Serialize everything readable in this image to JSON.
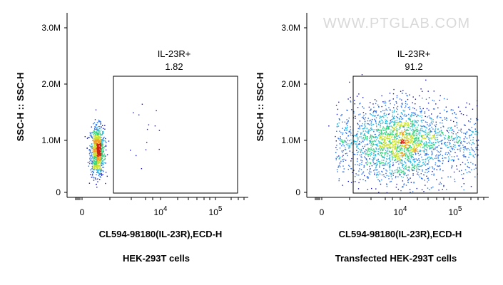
{
  "watermark": "WWW.PTGLAB.COM",
  "colors": {
    "density_scale": [
      "#1a1aa6",
      "#2b6ee6",
      "#27b8e0",
      "#30d07a",
      "#c8e030",
      "#f4a020",
      "#d02010"
    ],
    "gate_line": "#000000",
    "axis_line": "#000000"
  },
  "chart_data": [
    {
      "type": "scatter",
      "subtype": "flow-cytometry-density-dot-plot",
      "title": "",
      "caption": "HEK-293T cells",
      "xlabel": "CL594-98180(IL-23R),ECD-H",
      "ylabel": "SSC-H :: SSC-H",
      "x_scale": "biexponential",
      "x_ticks": [
        {
          "value": 0,
          "label": "0"
        },
        {
          "value": 10000,
          "label": "10",
          "exp": "4"
        },
        {
          "value": 100000,
          "label": "10",
          "exp": "5"
        }
      ],
      "y_ticks": [
        {
          "value": 0,
          "label": "0"
        },
        {
          "value": 1000000,
          "label": "1.0M"
        },
        {
          "value": 2000000,
          "label": "2.0M"
        },
        {
          "value": 3000000,
          "label": "3.0M"
        }
      ],
      "ylim": [
        0,
        3200000
      ],
      "gate": {
        "name": "IL-23R+",
        "value": "1.82",
        "x_range": [
          1100,
          290000
        ],
        "y_range": [
          0,
          2120000
        ]
      },
      "population": {
        "x_center": 400,
        "y_center": 760000,
        "spread": "narrow",
        "events_in_gate_percent": 1.82
      },
      "grid": false,
      "legend": "none"
    },
    {
      "type": "scatter",
      "subtype": "flow-cytometry-density-dot-plot",
      "title": "",
      "caption": "Transfected HEK-293T cells",
      "xlabel": "CL594-98180(IL-23R),ECD-H",
      "ylabel": "SSC-H :: SSC-H",
      "x_scale": "biexponential",
      "x_ticks": [
        {
          "value": 0,
          "label": "0"
        },
        {
          "value": 10000,
          "label": "10",
          "exp": "4"
        },
        {
          "value": 100000,
          "label": "10",
          "exp": "5"
        }
      ],
      "y_ticks": [
        {
          "value": 0,
          "label": "0"
        },
        {
          "value": 1000000,
          "label": "1.0M"
        },
        {
          "value": 2000000,
          "label": "2.0M"
        },
        {
          "value": 3000000,
          "label": "3.0M"
        }
      ],
      "ylim": [
        0,
        3200000
      ],
      "gate": {
        "name": "IL-23R+",
        "value": "91.2",
        "x_range": [
          1100,
          290000
        ],
        "y_range": [
          0,
          2120000
        ]
      },
      "population": {
        "x_center": 25000,
        "y_center": 900000,
        "spread": "wide",
        "events_in_gate_percent": 91.2
      },
      "grid": false,
      "legend": "none"
    }
  ]
}
